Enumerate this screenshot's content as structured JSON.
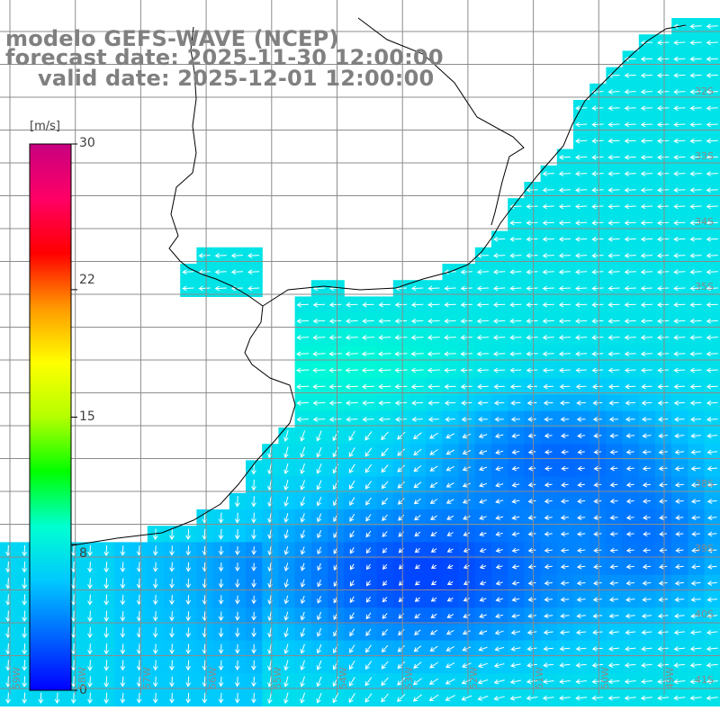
{
  "title": {
    "model": "modelo GEFS-WAVE (NCEP)",
    "forecast": "forecast date: 2025-11-30 12:00:00",
    "valid": "valid date: 2025-12-01 12:00:00"
  },
  "colorbar": {
    "unit": "[m/s]",
    "ticks": [
      "30",
      "22",
      "15",
      "8",
      "0"
    ],
    "tick_values": [
      30,
      22,
      15,
      8,
      0
    ],
    "min": 0,
    "max": 30,
    "colors": [
      "#0000ff",
      "#0066ff",
      "#00c8ff",
      "#00ffd0",
      "#00ff00",
      "#b4ff00",
      "#ffff00",
      "#ff9900",
      "#ff0000",
      "#ff0066",
      "#c80080"
    ]
  },
  "lat_labels": [
    "32S",
    "33S",
    "34S",
    "35S",
    "38S",
    "39S",
    "40S",
    "41S"
  ],
  "lon_labels": [
    "59W",
    "58W",
    "57W",
    "56W",
    "55W",
    "54W",
    "53W",
    "52W",
    "51W",
    "50W",
    "49W"
  ],
  "colors": {
    "land": "#ffffff",
    "coast": "#000000",
    "grid": "#8c8c8c",
    "vector": "#ffffff",
    "title": "#808080"
  }
}
